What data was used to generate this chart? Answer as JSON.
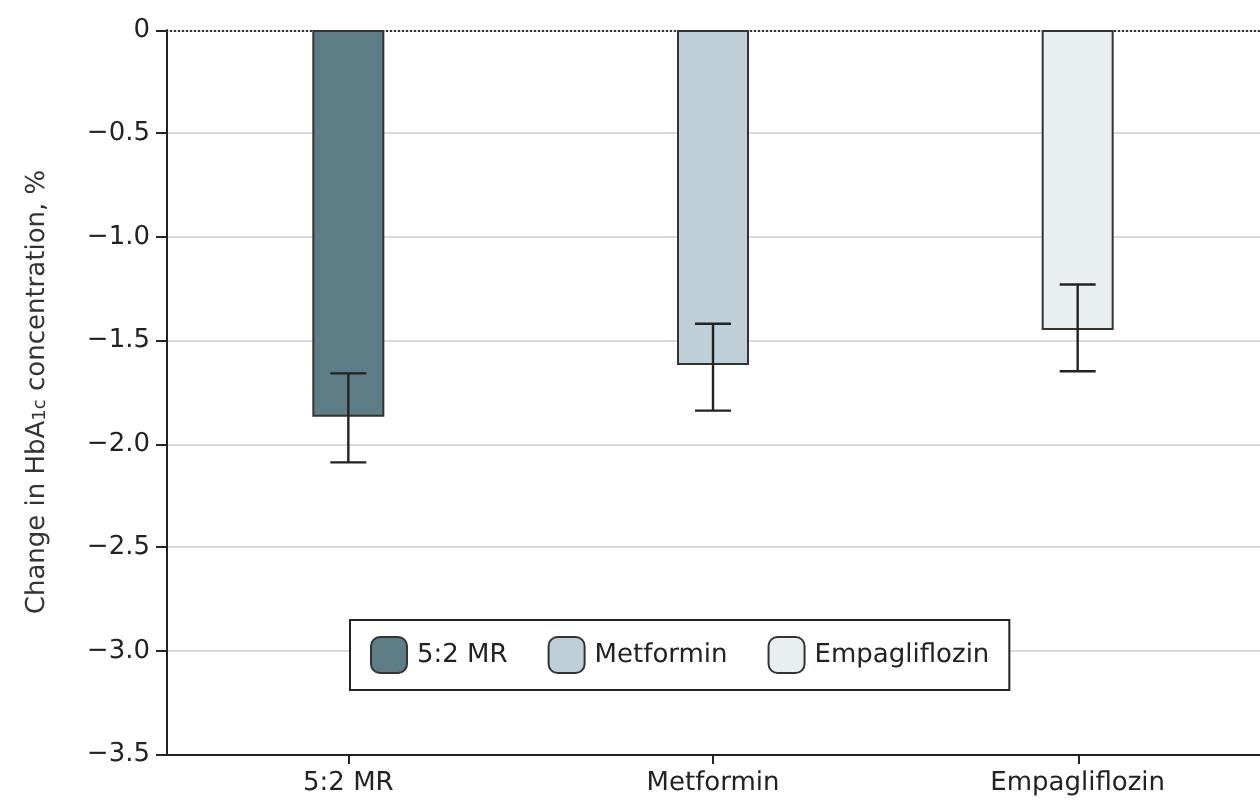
{
  "chart_data": {
    "type": "bar",
    "ylabel": "Change in HbA$_{1c}$ concentration, %",
    "categories": [
      "5:2 MR",
      "Metformin",
      "Empagliflozin"
    ],
    "series": [
      {
        "name": "5:2 MR",
        "color": "#5f7d87",
        "values": [
          -1.87,
          null,
          null
        ],
        "errors": [
          [
            -2.09,
            -1.66
          ],
          null,
          null
        ]
      },
      {
        "name": "Metformin",
        "color": "#bfcfd8",
        "values": [
          null,
          -1.62,
          null
        ],
        "errors": [
          null,
          [
            -1.84,
            -1.42
          ],
          null
        ]
      },
      {
        "name": "Empagliflozin",
        "color": "#e9eef1",
        "values": [
          null,
          null,
          -1.45
        ],
        "errors": [
          null,
          null,
          [
            -1.65,
            -1.23
          ]
        ]
      }
    ],
    "ylim": [
      -3.5,
      0
    ],
    "yticks": [
      {
        "value": 0,
        "label": "0"
      },
      {
        "value": -0.5,
        "label": "−0.5"
      },
      {
        "value": -1,
        "label": "−1.0"
      },
      {
        "value": -1.5,
        "label": "−1.5"
      },
      {
        "value": -2,
        "label": "−2.0"
      },
      {
        "value": -2.5,
        "label": "−2.5"
      },
      {
        "value": -3,
        "label": "−3.0"
      },
      {
        "value": -3.5,
        "label": "−3.5"
      }
    ],
    "grid": "y",
    "legend": "bottom",
    "ref_lines": [
      {
        "axis": "y",
        "value": 0,
        "label": null,
        "color": "#333333",
        "line_style": "dotted"
      }
    ]
  }
}
